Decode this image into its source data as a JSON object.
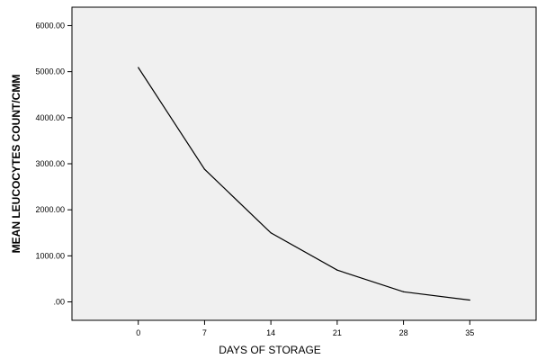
{
  "chart_data": {
    "type": "line",
    "title": "",
    "xlabel": "DAYS OF STORAGE",
    "ylabel": "MEAN LEUCOCYTES COUNT/CMM",
    "x": [
      0,
      7,
      14,
      21,
      28,
      35
    ],
    "x_tick_labels": [
      "0",
      "7",
      "14",
      "21",
      "28",
      "35"
    ],
    "xlim": [
      -7,
      42
    ],
    "ylim": [
      -400,
      6400
    ],
    "y_ticks": [
      0,
      1000,
      2000,
      3000,
      4000,
      5000,
      6000
    ],
    "y_tick_labels": [
      ".00",
      "1000.00",
      "2000.00",
      "3000.00",
      "4000.00",
      "5000.00",
      "6000.00"
    ],
    "series": [
      {
        "values": [
          5090,
          2880,
          1500,
          690,
          220,
          40
        ]
      }
    ],
    "grid": false,
    "colors": {
      "plot_background": "#f0f0f0",
      "line": "#000000",
      "axis": "#000000"
    }
  }
}
